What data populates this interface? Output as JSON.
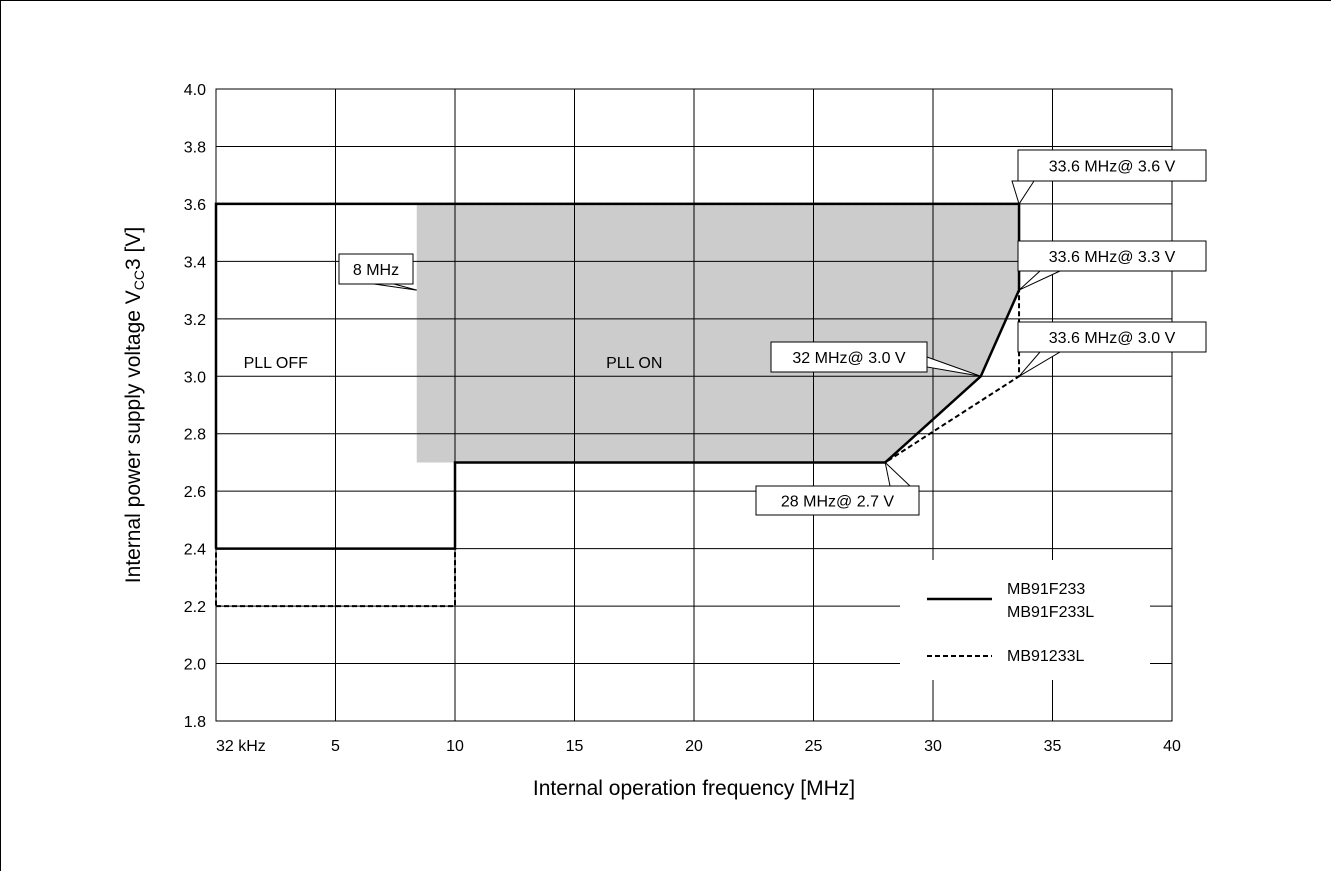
{
  "chart_data": {
    "type": "line",
    "xlabel": "Internal operation frequency [MHz]",
    "ylabel_main": "Internal power supply voltage V",
    "ylabel_sub": "CC",
    "ylabel_tail": "3 [V]",
    "xlim": [
      0,
      40
    ],
    "ylim": [
      1.8,
      4.0
    ],
    "x_ticks": [
      {
        "value": 0,
        "label": "32 kHz"
      },
      {
        "value": 5,
        "label": "5"
      },
      {
        "value": 10,
        "label": "10"
      },
      {
        "value": 15,
        "label": "15"
      },
      {
        "value": 20,
        "label": "20"
      },
      {
        "value": 25,
        "label": "25"
      },
      {
        "value": 30,
        "label": "30"
      },
      {
        "value": 35,
        "label": "35"
      },
      {
        "value": 40,
        "label": "40"
      }
    ],
    "y_ticks": [
      {
        "value": 1.8,
        "label": "1.8"
      },
      {
        "value": 2.0,
        "label": "2.0"
      },
      {
        "value": 2.2,
        "label": "2.2"
      },
      {
        "value": 2.4,
        "label": "2.4"
      },
      {
        "value": 2.6,
        "label": "2.6"
      },
      {
        "value": 2.8,
        "label": "2.8"
      },
      {
        "value": 3.0,
        "label": "3.0"
      },
      {
        "value": 3.2,
        "label": "3.2"
      },
      {
        "value": 3.4,
        "label": "3.4"
      },
      {
        "value": 3.6,
        "label": "3.6"
      },
      {
        "value": 3.8,
        "label": "3.8"
      },
      {
        "value": 4.0,
        "label": "4.0"
      }
    ],
    "grid": true,
    "shaded_region": {
      "label": "PLL ON",
      "color": "#cccccc",
      "points": [
        [
          8.4,
          3.6
        ],
        [
          33.6,
          3.6
        ],
        [
          33.6,
          3.3
        ],
        [
          32,
          3.0
        ],
        [
          28,
          2.7
        ],
        [
          8.4,
          2.7
        ]
      ]
    },
    "series": [
      {
        "name": "MB91F233\nMB91F233L",
        "style": "solid",
        "points": [
          [
            0,
            2.4
          ],
          [
            10,
            2.4
          ],
          [
            10,
            2.7
          ],
          [
            28,
            2.7
          ],
          [
            32,
            3.0
          ],
          [
            33.6,
            3.3
          ],
          [
            33.6,
            3.6
          ],
          [
            0,
            3.6
          ],
          [
            0,
            2.4
          ]
        ]
      },
      {
        "name": "MB91233L",
        "style": "dashed",
        "points": [
          [
            0,
            2.2
          ],
          [
            10,
            2.2
          ],
          [
            10,
            2.7
          ],
          [
            28,
            2.7
          ],
          [
            33.6,
            3.0
          ],
          [
            33.6,
            3.6
          ],
          [
            0,
            3.6
          ],
          [
            0,
            2.2
          ]
        ]
      }
    ],
    "region_labels": [
      {
        "text": "PLL OFF",
        "x": 2.5,
        "y": 3.05
      },
      {
        "text": "PLL ON",
        "x": 17.5,
        "y": 3.05
      }
    ],
    "annotations": [
      {
        "text": "33.6 MHz@ 3.6 V",
        "target": [
          33.6,
          3.6
        ]
      },
      {
        "text": "33.6 MHz@ 3.3 V",
        "target": [
          33.6,
          3.3
        ]
      },
      {
        "text": "33.6 MHz@ 3.0 V",
        "target": [
          33.6,
          3.0
        ]
      },
      {
        "text": "32 MHz@ 3.0 V",
        "target": [
          32,
          3.0
        ]
      },
      {
        "text": "28 MHz@ 2.7 V",
        "target": [
          28,
          2.7
        ]
      },
      {
        "text": "8 MHz",
        "target": [
          8.4,
          3.3
        ]
      }
    ],
    "legend": {
      "placement": "bottom-right",
      "entries": [
        {
          "style": "solid",
          "line1": "MB91F233",
          "line2": "MB91F233L"
        },
        {
          "style": "dashed",
          "line1": "MB91233L",
          "line2": ""
        }
      ]
    }
  }
}
